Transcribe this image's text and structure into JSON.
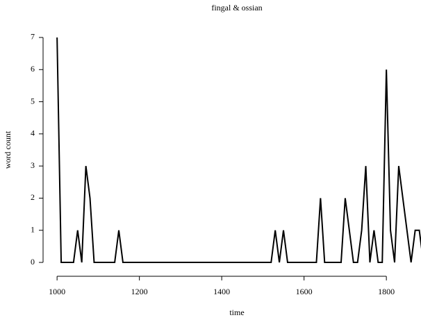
{
  "chart_data": {
    "type": "line",
    "title": "fingal & ossian",
    "xlabel": "time",
    "ylabel": "word count",
    "x": [
      1000,
      1010,
      1020,
      1030,
      1040,
      1050,
      1060,
      1070,
      1080,
      1090,
      1100,
      1110,
      1120,
      1130,
      1140,
      1150,
      1160,
      1170,
      1180,
      1190,
      1200,
      1210,
      1220,
      1230,
      1240,
      1250,
      1260,
      1270,
      1280,
      1290,
      1300,
      1310,
      1320,
      1330,
      1340,
      1350,
      1360,
      1370,
      1380,
      1390,
      1400,
      1410,
      1420,
      1430,
      1440,
      1450,
      1460,
      1470,
      1480,
      1490,
      1500,
      1510,
      1520,
      1530,
      1540,
      1550,
      1560,
      1570,
      1580,
      1590,
      1600,
      1610,
      1620,
      1630,
      1640,
      1650,
      1660,
      1670,
      1680,
      1690,
      1700,
      1710,
      1720,
      1730,
      1740,
      1750,
      1760,
      1770,
      1780,
      1790,
      1800,
      1810,
      1820,
      1830,
      1840,
      1850,
      1860,
      1870,
      1880,
      1890
    ],
    "series": [
      {
        "name": "word count",
        "color": "#000000",
        "values": [
          7,
          0,
          0,
          0,
          0,
          1,
          0,
          3,
          2,
          0,
          0,
          0,
          0,
          0,
          0,
          1,
          0,
          0,
          0,
          0,
          0,
          0,
          0,
          0,
          0,
          0,
          0,
          0,
          0,
          0,
          0,
          0,
          0,
          0,
          0,
          0,
          0,
          0,
          0,
          0,
          0,
          0,
          0,
          0,
          0,
          0,
          0,
          0,
          0,
          0,
          0,
          0,
          0,
          1,
          0,
          1,
          0,
          0,
          0,
          0,
          0,
          0,
          0,
          0,
          2,
          0,
          0,
          0,
          0,
          0,
          2,
          1,
          0,
          0,
          1,
          3,
          0,
          1,
          0,
          0,
          6,
          1,
          0,
          3,
          2,
          1,
          0,
          1,
          1,
          0
        ]
      }
    ],
    "xlim": [
      966,
      1887
    ],
    "ylim": [
      -0.28,
      7.28
    ],
    "xticks": [
      1000,
      1200,
      1400,
      1600,
      1800
    ],
    "yticks": [
      0,
      1,
      2,
      3,
      4,
      5,
      6,
      7
    ]
  }
}
